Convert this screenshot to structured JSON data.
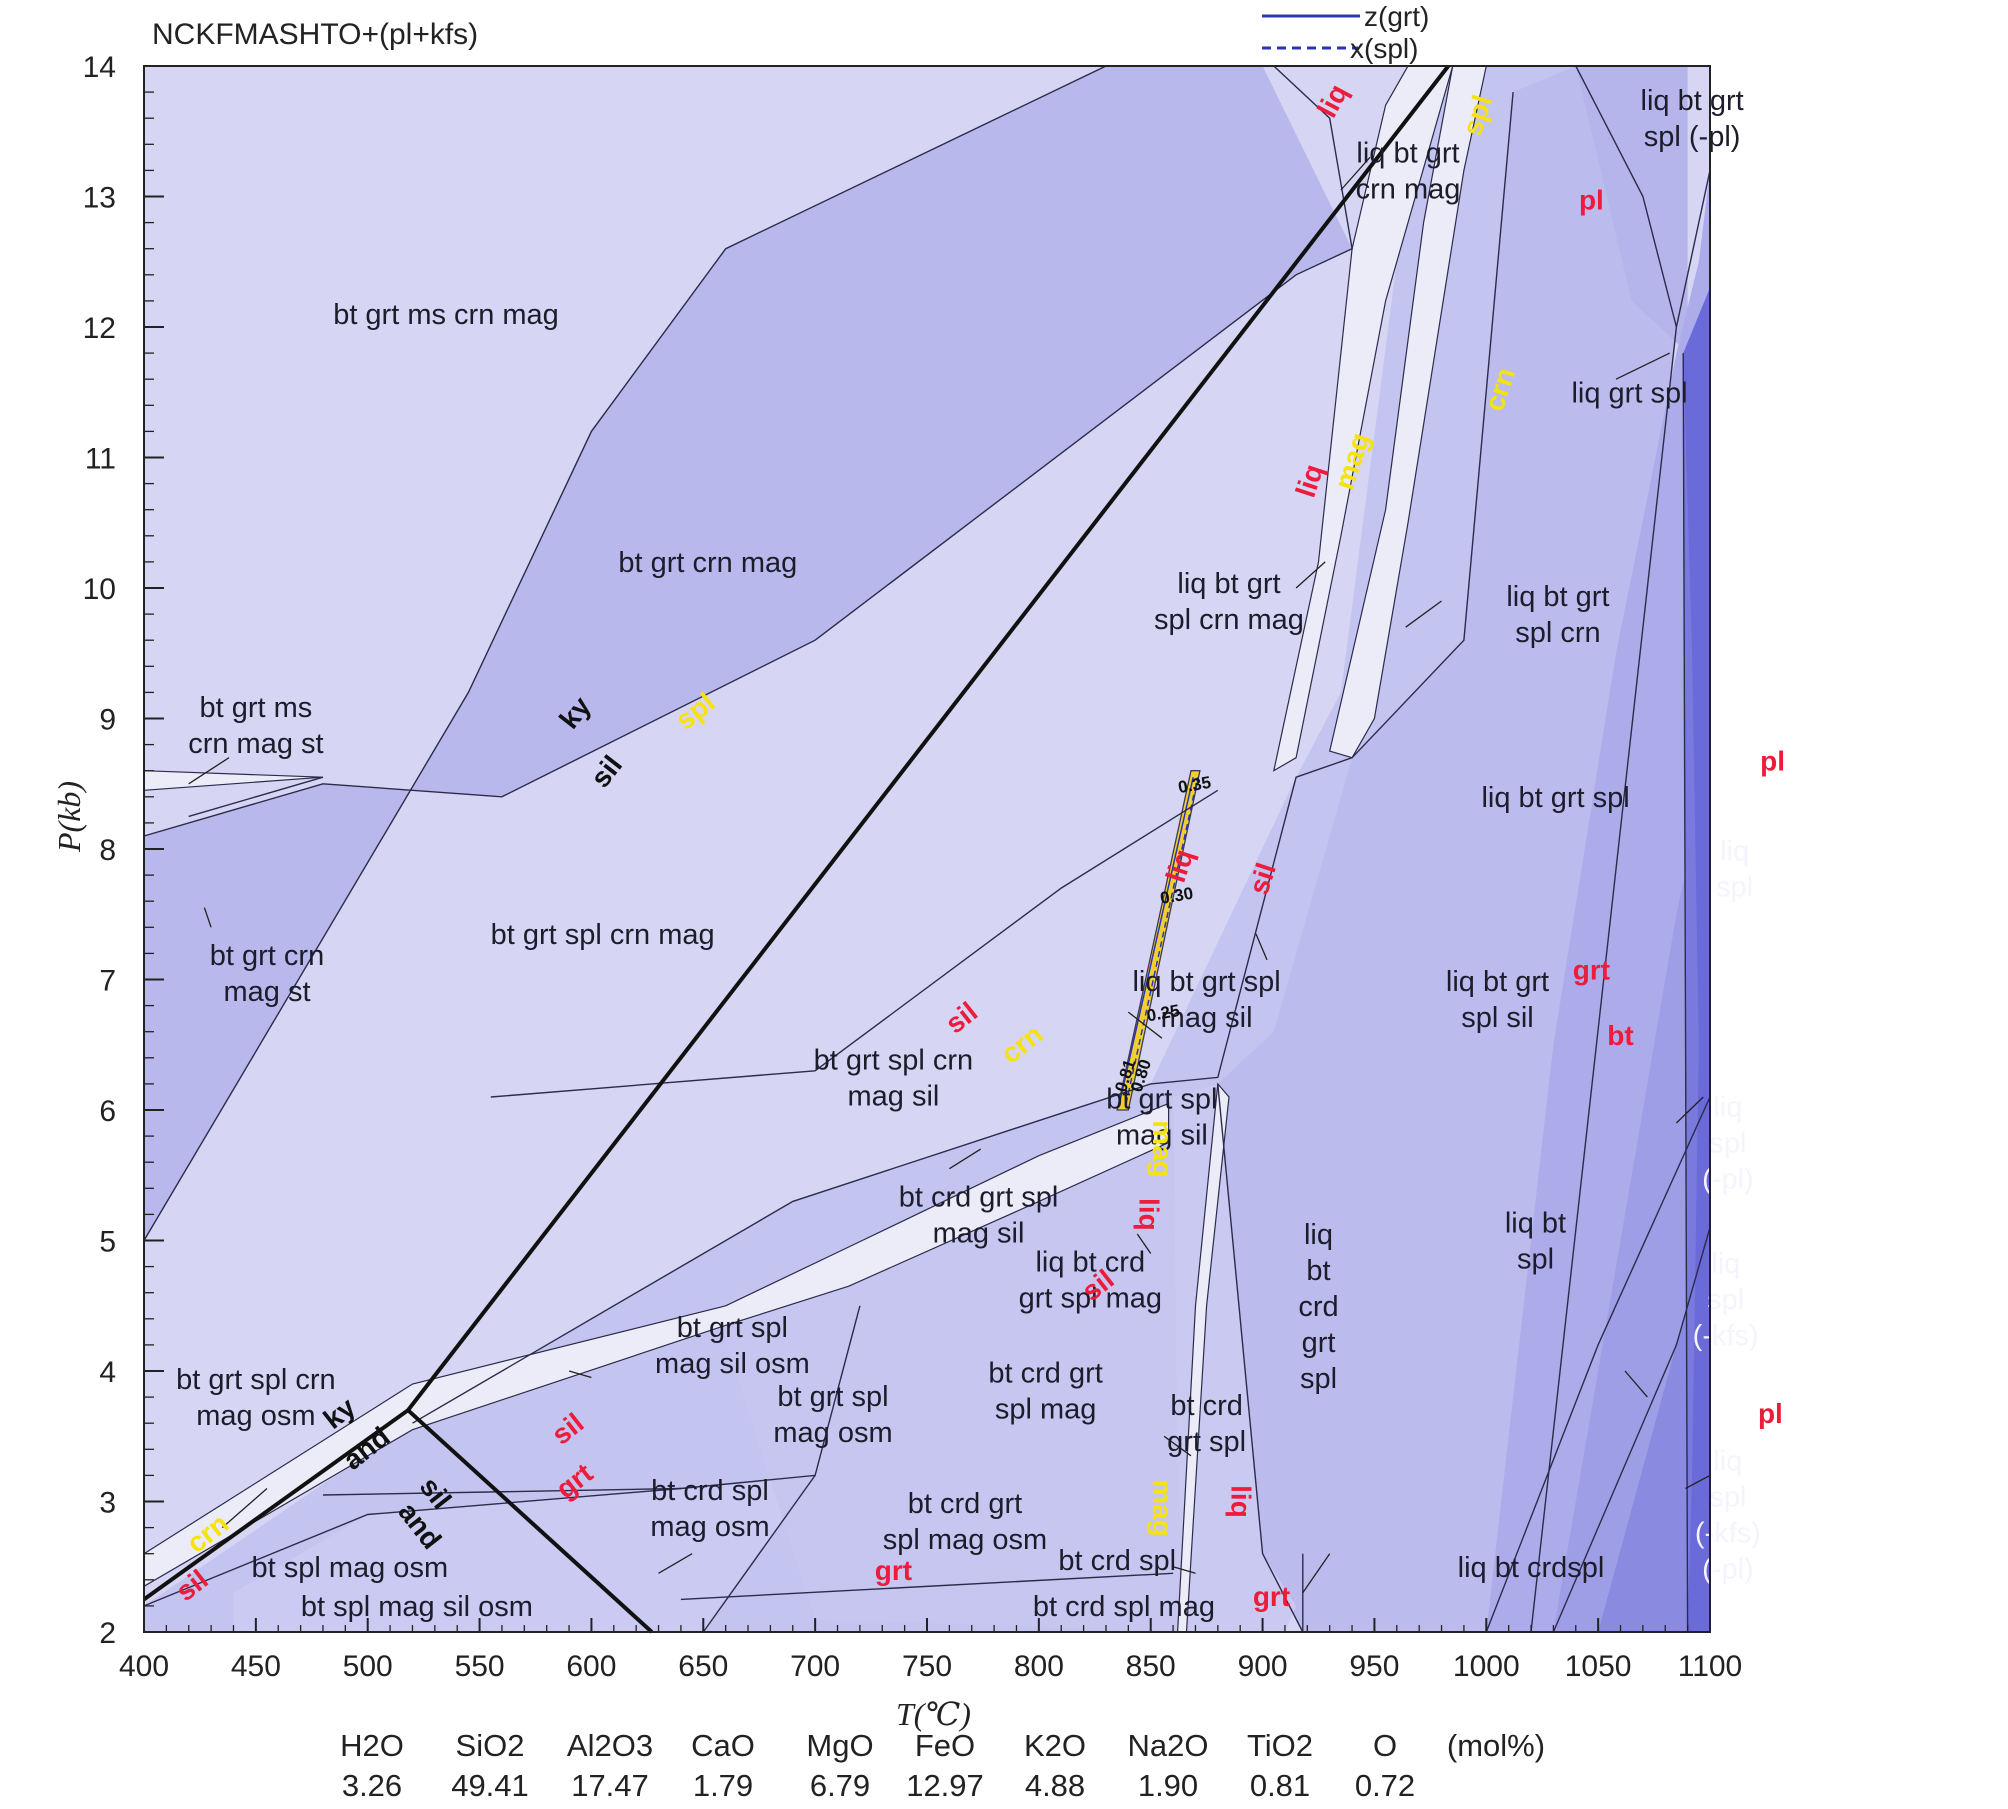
{
  "chart_data": {
    "type": "phase_diagram",
    "title": "NCKFMASHTO+(pl+kfs)",
    "xlabel": "T(℃)",
    "ylabel": "P(kb)",
    "xlim": [
      400,
      1100
    ],
    "ylim": [
      2,
      14
    ],
    "xticks": [
      "400",
      "450",
      "500",
      "550",
      "600",
      "650",
      "700",
      "750",
      "800",
      "850",
      "900",
      "950",
      "1000",
      "1050",
      "1100"
    ],
    "yticks": [
      "2",
      "3",
      "4",
      "5",
      "6",
      "7",
      "8",
      "9",
      "10",
      "11",
      "12",
      "13",
      "14"
    ],
    "legend": [
      {
        "label": "z(grt)",
        "style": "solid"
      },
      {
        "label": "x(spl)",
        "style": "dashed"
      }
    ],
    "field_labels": [
      {
        "lines": [
          "bt grt ms crn mag"
        ],
        "T": 535,
        "P": 12.1
      },
      {
        "lines": [
          "bt grt crn mag"
        ],
        "T": 652,
        "P": 10.2
      },
      {
        "lines": [
          "bt grt ms",
          "crn mag st"
        ],
        "T": 450,
        "P": 8.95
      },
      {
        "lines": [
          "bt grt crn",
          "mag st"
        ],
        "T": 455,
        "P": 7.05
      },
      {
        "lines": [
          "bt grt spl crn mag"
        ],
        "T": 605,
        "P": 7.35
      },
      {
        "lines": [
          "bt grt spl crn",
          "mag sil"
        ],
        "T": 735,
        "P": 6.25
      },
      {
        "lines": [
          "bt grt spl",
          "mag sil"
        ],
        "T": 855,
        "P": 5.95
      },
      {
        "lines": [
          "liq bt grt spl",
          "mag sil"
        ],
        "T": 875,
        "P": 6.85
      },
      {
        "lines": [
          "liq bt grt",
          "spl sil"
        ],
        "T": 1005,
        "P": 6.85
      },
      {
        "lines": [
          "liq bt grt spl"
        ],
        "T": 1031,
        "P": 8.4
      },
      {
        "lines": [
          "liq bt grt",
          "spl crn mag"
        ],
        "T": 885,
        "P": 9.9
      },
      {
        "lines": [
          "liq bt grt",
          "spl crn"
        ],
        "T": 1032,
        "P": 9.8
      },
      {
        "lines": [
          "liq bt grt",
          "crn mag"
        ],
        "T": 965,
        "P": 13.2
      },
      {
        "lines": [
          "liq bt grt",
          "spl (-pl)"
        ],
        "T": 1092,
        "P": 13.6
      },
      {
        "lines": [
          "liq grt spl"
        ],
        "T": 1064,
        "P": 11.5
      },
      {
        "lines": [
          "liq",
          "spl"
        ],
        "T": 1111,
        "P": 7.85
      },
      {
        "lines": [
          "liq",
          "spl",
          "(-pl)"
        ],
        "T": 1108,
        "P": 5.75
      },
      {
        "lines": [
          "liq bt",
          "spl"
        ],
        "T": 1022,
        "P": 5.0
      },
      {
        "lines": [
          "liq",
          "spl",
          "(-kfs)"
        ],
        "T": 1107,
        "P": 4.55
      },
      {
        "lines": [
          "liq",
          "spl",
          "(-kfs)",
          "(-pl)"
        ],
        "T": 1108,
        "P": 2.9
      },
      {
        "lines": [
          "bt crd grt spl",
          "mag sil"
        ],
        "T": 773,
        "P": 5.2
      },
      {
        "lines": [
          "liq bt crd",
          "grt spl mag"
        ],
        "T": 823,
        "P": 4.7
      },
      {
        "lines": [
          "bt grt spl",
          "mag sil osm"
        ],
        "T": 663,
        "P": 4.2
      },
      {
        "lines": [
          "bt grt spl",
          "mag osm"
        ],
        "T": 708,
        "P": 3.67
      },
      {
        "lines": [
          "bt crd grt",
          "spl mag"
        ],
        "T": 803,
        "P": 3.85
      },
      {
        "lines": [
          "bt crd",
          "grt spl"
        ],
        "T": 875,
        "P": 3.6
      },
      {
        "lines": [
          "liq",
          "bt",
          "crd",
          "grt",
          "spl"
        ],
        "T": 925,
        "P": 4.5
      },
      {
        "lines": [
          "bt grt spl crn",
          "mag osm"
        ],
        "T": 450,
        "P": 3.8
      },
      {
        "lines": [
          "bt crd spl",
          "mag osm"
        ],
        "T": 653,
        "P": 2.95
      },
      {
        "lines": [
          "bt crd grt",
          "spl mag osm"
        ],
        "T": 767,
        "P": 2.85
      },
      {
        "lines": [
          "bt spl mag osm"
        ],
        "T": 492,
        "P": 2.5
      },
      {
        "lines": [
          "bt spl mag sil osm"
        ],
        "T": 522,
        "P": 2.2
      },
      {
        "lines": [
          "bt crd spl"
        ],
        "T": 835,
        "P": 2.55
      },
      {
        "lines": [
          "bt crd spl mag"
        ],
        "T": 838,
        "P": 2.2
      },
      {
        "lines": [
          "liq bt crdspl"
        ],
        "T": 1020,
        "P": 2.5
      }
    ],
    "reaction_labels": [
      {
        "text": "liq",
        "color": "#ee1c3a",
        "T": 935,
        "P": 13.7
      },
      {
        "text": "spl",
        "color": "#f5e20f",
        "T": 1000,
        "P": 13.6
      },
      {
        "text": "pl",
        "color": "#ee1c3a",
        "T": 1047,
        "P": 12.9
      },
      {
        "text": "crn",
        "color": "#f5e20f",
        "T": 1010,
        "P": 11.5
      },
      {
        "text": "mag",
        "color": "#f5e20f",
        "T": 944,
        "P": 10.95
      },
      {
        "text": "liq",
        "color": "#ee1c3a",
        "T": 925,
        "P": 10.8
      },
      {
        "text": "spl",
        "color": "#f5e20f",
        "T": 649,
        "P": 9.0
      },
      {
        "text": "pl",
        "color": "#ee1c3a",
        "T": 1128,
        "P": 8.6
      },
      {
        "text": "liq",
        "color": "#ee1c3a",
        "T": 867,
        "P": 7.85
      },
      {
        "text": "sil",
        "color": "#ee1c3a",
        "T": 904,
        "P": 7.75
      },
      {
        "text": "grt",
        "color": "#ee1c3a",
        "T": 1047,
        "P": 7.0
      },
      {
        "text": "bt",
        "color": "#ee1c3a",
        "T": 1060,
        "P": 6.5
      },
      {
        "text": "sil",
        "color": "#ee1c3a",
        "T": 768,
        "P": 6.65
      },
      {
        "text": "crn",
        "color": "#f5e20f",
        "T": 795,
        "P": 6.45
      },
      {
        "text": "mag",
        "color": "#f5e20f",
        "T": 851,
        "P": 5.7
      },
      {
        "text": "liq",
        "color": "#ee1c3a",
        "T": 845,
        "P": 5.2
      },
      {
        "text": "sil",
        "color": "#ee1c3a",
        "T": 829,
        "P": 4.6
      },
      {
        "text": "sil",
        "color": "#ee1c3a",
        "T": 592,
        "P": 3.5
      },
      {
        "text": "grt",
        "color": "#ee1c3a",
        "T": 595,
        "P": 3.1
      },
      {
        "text": "crn",
        "color": "#f5e20f",
        "T": 431,
        "P": 2.7
      },
      {
        "text": "sil",
        "color": "#ee1c3a",
        "T": 424,
        "P": 2.3
      },
      {
        "text": "pl",
        "color": "#ee1c3a",
        "T": 1127,
        "P": 3.6
      },
      {
        "text": "grt",
        "color": "#ee1c3a",
        "T": 735,
        "P": 2.4
      },
      {
        "text": "grt",
        "color": "#ee1c3a",
        "T": 904,
        "P": 2.2
      },
      {
        "text": "mag",
        "color": "#f5e20f",
        "T": 851,
        "P": 2.95
      },
      {
        "text": "liq",
        "color": "#ee1c3a",
        "T": 886,
        "P": 3.0
      }
    ],
    "triple_point_labels": [
      {
        "text": "ky",
        "T": 596,
        "P": 9.0
      },
      {
        "text": "sil",
        "T": 610,
        "P": 8.55
      },
      {
        "text": "ky",
        "T": 490,
        "P": 3.62
      },
      {
        "text": "and",
        "T": 502,
        "P": 3.35
      },
      {
        "text": "sil",
        "T": 527,
        "P": 3.02
      },
      {
        "text": "and",
        "T": 520,
        "P": 2.77
      }
    ],
    "isopleths": [
      {
        "label": "0.35",
        "T": 870,
        "P": 8.45
      },
      {
        "label": "0.30",
        "T": 862,
        "P": 7.6
      },
      {
        "label": "0.25",
        "T": 856,
        "P": 6.7
      },
      {
        "label": "0.81",
        "T": 841,
        "P": 6.25
      },
      {
        "label": "0.80",
        "T": 848,
        "P": 6.25
      }
    ],
    "composition": {
      "oxides": [
        "H2O",
        "SiO2",
        "Al2O3",
        "CaO",
        "MgO",
        "FeO",
        "K2O",
        "Na2O",
        "TiO2",
        "O"
      ],
      "values": [
        "3.26",
        "49.41",
        "17.47",
        "1.79",
        "6.79",
        "12.97",
        "4.88",
        "1.90",
        "0.81",
        "0.72"
      ],
      "unit": "(mol%)"
    }
  }
}
